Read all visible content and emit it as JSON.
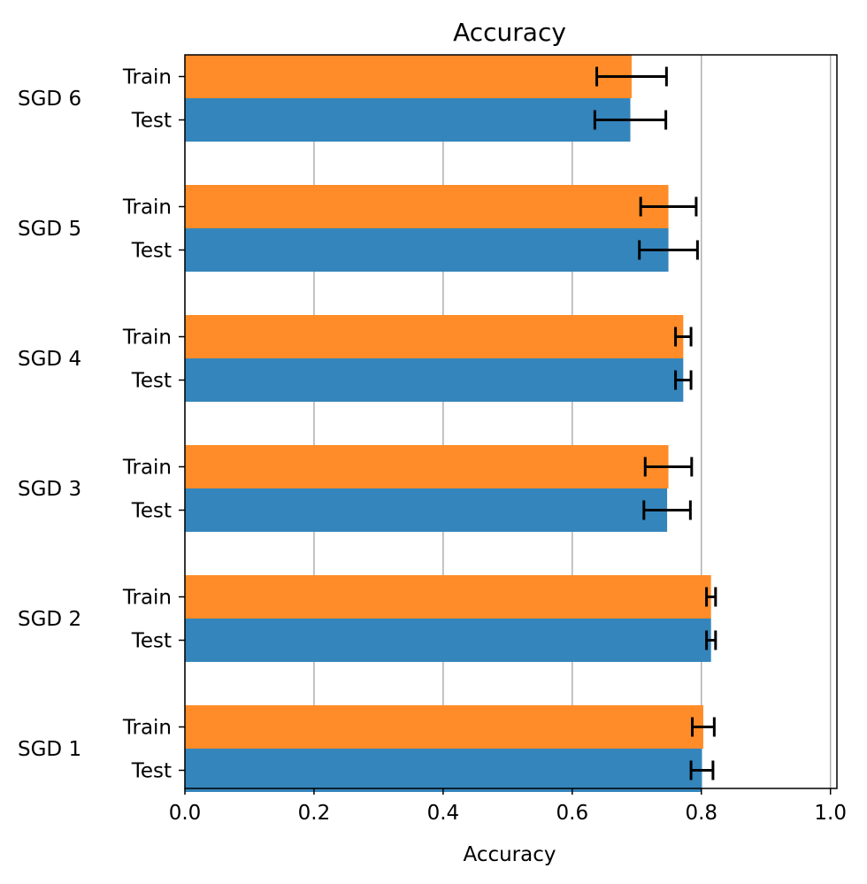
{
  "chart_data": {
    "type": "bar",
    "orientation": "horizontal",
    "title": "Accuracy",
    "xlabel": "Accuracy",
    "ylabel": "",
    "xlim": [
      0,
      1.01
    ],
    "x_ticks": [
      "0.0",
      "0.2",
      "0.4",
      "0.6",
      "0.8",
      "1.0"
    ],
    "grid": "x",
    "groups": [
      "SGD 6",
      "SGD 5",
      "SGD 4",
      "SGD 3",
      "SGD 2",
      "SGD 1"
    ],
    "bar_labels": [
      "Train",
      "Test"
    ],
    "series": [
      {
        "label": "Train",
        "color": "#ff8c28",
        "values": [
          0.692,
          0.749,
          0.772,
          0.749,
          0.815,
          0.803
        ],
        "errors": [
          0.054,
          0.043,
          0.012,
          0.036,
          0.007,
          0.017
        ]
      },
      {
        "label": "Test",
        "color": "#3485bc",
        "values": [
          0.69,
          0.749,
          0.772,
          0.747,
          0.815,
          0.801
        ],
        "errors": [
          0.055,
          0.045,
          0.012,
          0.036,
          0.007,
          0.017
        ]
      }
    ]
  }
}
